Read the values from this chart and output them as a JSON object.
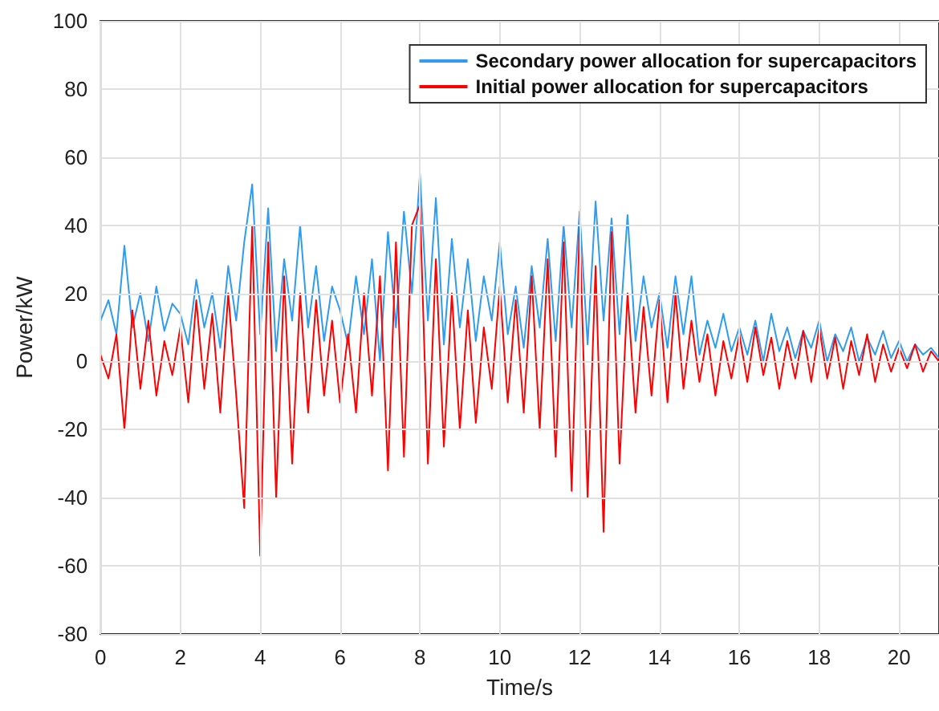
{
  "chart_data": {
    "type": "line",
    "xlabel": "Time/s",
    "ylabel": "Power/kW",
    "xlim": [
      0,
      21
    ],
    "xticks": [
      0,
      2,
      4,
      6,
      8,
      10,
      12,
      14,
      16,
      18,
      20
    ],
    "ylim": [
      -80,
      100
    ],
    "yticks": [
      -80,
      -60,
      -40,
      -20,
      0,
      20,
      40,
      60,
      80,
      100
    ],
    "grid": true,
    "legend": "top right",
    "marker": "none",
    "line_style": "solid",
    "x": [
      0,
      0.2,
      0.4,
      0.6,
      0.8,
      1,
      1.2,
      1.4,
      1.6,
      1.8,
      2,
      2.2,
      2.4,
      2.6,
      2.8,
      3,
      3.2,
      3.4,
      3.6,
      3.8,
      4,
      4.2,
      4.4,
      4.6,
      4.8,
      5,
      5.2,
      5.4,
      5.6,
      5.8,
      6,
      6.2,
      6.4,
      6.6,
      6.8,
      7,
      7.2,
      7.4,
      7.6,
      7.8,
      8,
      8.2,
      8.4,
      8.6,
      8.8,
      9,
      9.2,
      9.4,
      9.6,
      9.8,
      10,
      10.2,
      10.4,
      10.6,
      10.8,
      11,
      11.2,
      11.4,
      11.6,
      11.8,
      12,
      12.2,
      12.4,
      12.6,
      12.8,
      13,
      13.2,
      13.4,
      13.6,
      13.8,
      14,
      14.2,
      14.4,
      14.6,
      14.8,
      15,
      15.2,
      15.4,
      15.6,
      15.8,
      16,
      16.2,
      16.4,
      16.6,
      16.8,
      17,
      17.2,
      17.4,
      17.6,
      17.8,
      18,
      18.2,
      18.4,
      18.6,
      18.8,
      19,
      19.2,
      19.4,
      19.6,
      19.8,
      20,
      20.2,
      20.4,
      20.6,
      20.8,
      21
    ],
    "series": [
      {
        "name": "Secondary power allocation for supercapacitors",
        "color": "#2e9cf0",
        "values": [
          12,
          18,
          8,
          34,
          10,
          20,
          6,
          22,
          9,
          17,
          14,
          5,
          24,
          10,
          20,
          4,
          28,
          12,
          35,
          52,
          8,
          45,
          3,
          30,
          12,
          40,
          10,
          28,
          6,
          22,
          15,
          5,
          25,
          8,
          30,
          0,
          38,
          10,
          44,
          20,
          55,
          12,
          48,
          5,
          36,
          10,
          30,
          6,
          25,
          12,
          35,
          8,
          22,
          4,
          28,
          10,
          36,
          6,
          40,
          10,
          44,
          5,
          47,
          12,
          42,
          8,
          43,
          6,
          25,
          10,
          20,
          4,
          25,
          8,
          25,
          2,
          12,
          4,
          14,
          3,
          10,
          2,
          12,
          0,
          14,
          3,
          10,
          1,
          9,
          4,
          12,
          0,
          8,
          3,
          10,
          0,
          7,
          2,
          9,
          1,
          6,
          0,
          5,
          2,
          4,
          1
        ]
      },
      {
        "name": "Initial power allocation for supercapacitors",
        "color": "#ff0000",
        "values": [
          2,
          -5,
          8,
          -20,
          15,
          -8,
          12,
          -10,
          6,
          -4,
          10,
          -12,
          18,
          -8,
          14,
          -15,
          20,
          -10,
          -43,
          40,
          -57,
          35,
          -40,
          25,
          -30,
          20,
          -15,
          18,
          -10,
          12,
          -12,
          8,
          -15,
          20,
          -10,
          25,
          -32,
          35,
          -28,
          40,
          46,
          -30,
          30,
          -25,
          20,
          -20,
          15,
          -18,
          10,
          -8,
          22,
          -12,
          18,
          -15,
          25,
          -20,
          30,
          -28,
          35,
          -38,
          40,
          -40,
          28,
          -50,
          38,
          -30,
          20,
          -15,
          16,
          -10,
          18,
          -12,
          20,
          -8,
          12,
          -6,
          8,
          -10,
          6,
          -5,
          8,
          -6,
          10,
          -4,
          7,
          -8,
          6,
          -5,
          9,
          -6,
          10,
          -5,
          7,
          -8,
          6,
          -4,
          8,
          -6,
          5,
          -3,
          4,
          -2,
          5,
          -3,
          3,
          0
        ]
      }
    ]
  }
}
